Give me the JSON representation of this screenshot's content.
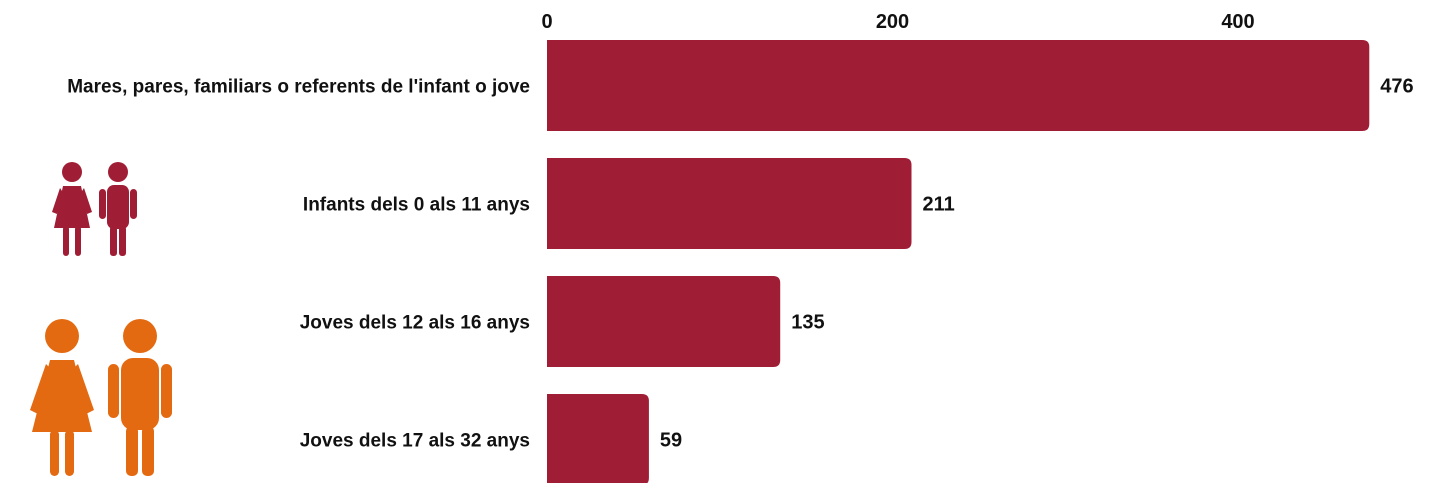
{
  "chart_data": {
    "type": "bar",
    "orientation": "horizontal",
    "categories": [
      "Mares, pares, familiars o referents de l'infant o jove",
      "Infants dels 0 als 11 anys",
      "Joves dels 12 als 16 anys",
      "Joves dels 17 als 32 anys"
    ],
    "values": [
      476,
      211,
      135,
      59
    ],
    "value_labels": [
      "476",
      "211",
      "135",
      "59"
    ],
    "x_ticks": [
      "0",
      "200",
      "400"
    ],
    "xlim": [
      0,
      476
    ],
    "x_axis_position": "top",
    "grid": false,
    "legend": "none",
    "bar_color": "#a01e35"
  },
  "decorations": {
    "children_icon": {
      "name": "children-figures-icon",
      "color": "#a01e35"
    },
    "youth_icon": {
      "name": "youth-figures-icon",
      "color": "#e46a12"
    }
  }
}
